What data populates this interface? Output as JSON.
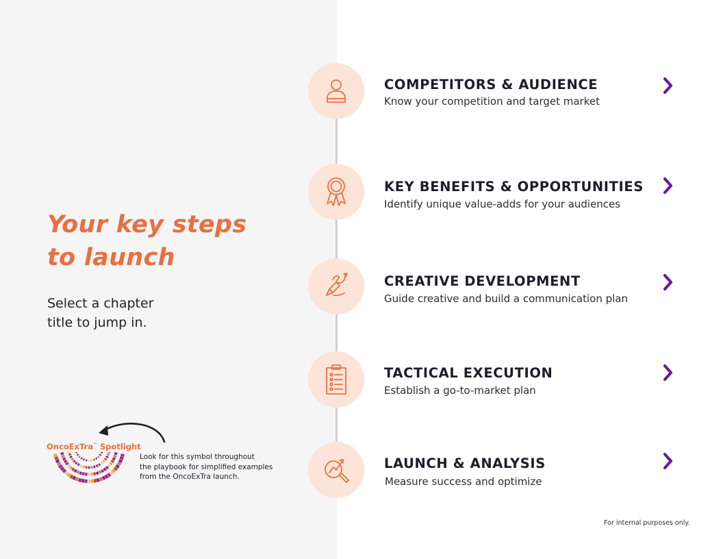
{
  "headline": {
    "line1": "Your key steps",
    "line2": "to launch"
  },
  "subline": {
    "line1": "Select a chapter",
    "line2": "title to jump in."
  },
  "spotlight": {
    "title": "OncoExTra",
    "title_mark": "™",
    "title_suffix": " Spotlight",
    "note_line1": "Look for this symbol throughout",
    "note_line2": "the playbook for simplified examples",
    "note_line3": "from the OncoExTra launch."
  },
  "steps": [
    {
      "title": "COMPETITORS & AUDIENCE",
      "desc": "Know your competition and target market",
      "icon": "person-icon"
    },
    {
      "title": "KEY BENEFITS & OPPORTUNITIES",
      "desc": "Identify unique value-adds for your audiences",
      "icon": "award-ribbon-icon"
    },
    {
      "title": "CREATIVE DEVELOPMENT",
      "desc": "Guide creative and build a communication plan",
      "icon": "pencil-squiggle-icon"
    },
    {
      "title": "TACTICAL EXECUTION",
      "desc": "Establish a go-to-market plan",
      "icon": "clipboard-checklist-icon"
    },
    {
      "title": "LAUNCH & ANALYSIS",
      "desc": "Measure success and optimize",
      "icon": "magnifier-chart-icon"
    }
  ],
  "footnote": "For internal purposes only.",
  "colors": {
    "accent": "#e8703f",
    "chevron": "#6a1b9a",
    "circle": "#fde4d8",
    "left_bg": "#f5f5f5"
  }
}
